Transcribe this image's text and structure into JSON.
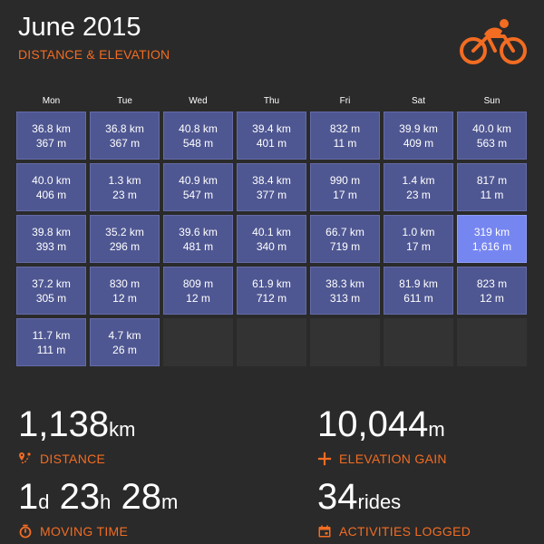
{
  "header": {
    "title": "June 2015",
    "subtitle": "DISTANCE & ELEVATION",
    "logo_icon": "cyclist-icon"
  },
  "calendar": {
    "day_names": [
      "Mon",
      "Tue",
      "Wed",
      "Thu",
      "Fri",
      "Sat",
      "Sun"
    ],
    "rows": [
      [
        {
          "distance": "36.8 km",
          "elevation": "367 m"
        },
        {
          "distance": "36.8 km",
          "elevation": "367 m"
        },
        {
          "distance": "40.8 km",
          "elevation": "548 m"
        },
        {
          "distance": "39.4 km",
          "elevation": "401 m"
        },
        {
          "distance": "832 m",
          "elevation": "11 m"
        },
        {
          "distance": "39.9 km",
          "elevation": "409 m"
        },
        {
          "distance": "40.0 km",
          "elevation": "563 m"
        }
      ],
      [
        {
          "distance": "40.0 km",
          "elevation": "406 m"
        },
        {
          "distance": "1.3 km",
          "elevation": "23 m"
        },
        {
          "distance": "40.9 km",
          "elevation": "547 m"
        },
        {
          "distance": "38.4 km",
          "elevation": "377 m"
        },
        {
          "distance": "990 m",
          "elevation": "17 m"
        },
        {
          "distance": "1.4 km",
          "elevation": "23 m"
        },
        {
          "distance": "817 m",
          "elevation": "11 m"
        }
      ],
      [
        {
          "distance": "39.8 km",
          "elevation": "393 m"
        },
        {
          "distance": "35.2 km",
          "elevation": "296 m"
        },
        {
          "distance": "39.6 km",
          "elevation": "481 m"
        },
        {
          "distance": "40.1 km",
          "elevation": "340 m"
        },
        {
          "distance": "66.7 km",
          "elevation": "719 m"
        },
        {
          "distance": "1.0 km",
          "elevation": "17 m"
        },
        {
          "distance": "319 km",
          "elevation": "1,616 m",
          "highlight": true
        }
      ],
      [
        {
          "distance": "37.2 km",
          "elevation": "305 m"
        },
        {
          "distance": "830 m",
          "elevation": "12 m"
        },
        {
          "distance": "809 m",
          "elevation": "12 m"
        },
        {
          "distance": "61.9 km",
          "elevation": "712 m"
        },
        {
          "distance": "38.3 km",
          "elevation": "313 m"
        },
        {
          "distance": "81.9 km",
          "elevation": "611 m"
        },
        {
          "distance": "823 m",
          "elevation": "12 m"
        }
      ],
      [
        {
          "distance": "11.7 km",
          "elevation": "111 m"
        },
        {
          "distance": "4.7 km",
          "elevation": "26 m"
        },
        null,
        null,
        null,
        null,
        null
      ]
    ]
  },
  "stats": {
    "distance": {
      "value": "1,138",
      "unit": "km",
      "label": "DISTANCE",
      "icon": "route-pin-icon"
    },
    "elevation": {
      "value": "10,044",
      "unit": "m",
      "label": "ELEVATION GAIN",
      "icon": "plus-icon"
    },
    "moving_time": {
      "days": "1",
      "days_unit": "d",
      "hours": "23",
      "hours_unit": "h",
      "minutes": "28",
      "minutes_unit": "m",
      "label": "MOVING TIME",
      "icon": "stopwatch-icon"
    },
    "activities": {
      "value": "34",
      "unit": "rides",
      "label": "ACTIVITIES LOGGED",
      "icon": "calendar-icon"
    }
  },
  "colors": {
    "accent": "#f26c22",
    "background": "#2a2a2a",
    "cell": "#4f5792",
    "cell_highlight": "#7686f0",
    "cell_empty": "#333333"
  }
}
